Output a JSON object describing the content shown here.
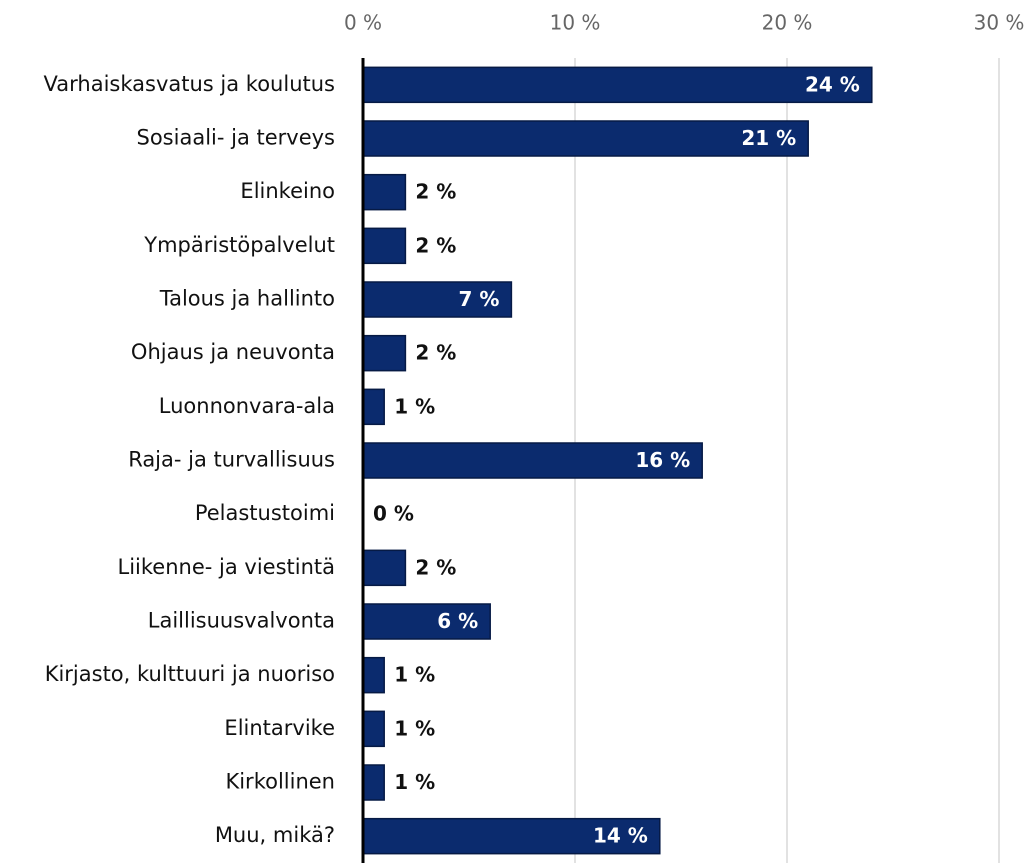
{
  "chart_data": {
    "type": "bar",
    "orientation": "horizontal",
    "categories": [
      "Varhaiskasvatus ja koulutus",
      "Sosiaali- ja terveys",
      "Elinkeino",
      "Ympäristöpalvelut",
      "Talous ja hallinto",
      "Ohjaus ja neuvonta",
      "Luonnonvara-ala",
      "Raja- ja turvallisuus",
      "Pelastustoimi",
      "Liikenne- ja viestintä",
      "Laillisuusvalvonta",
      "Kirjasto, kulttuuri ja nuoriso",
      "Elintarvike",
      "Kirkollinen",
      "Muu, mikä?"
    ],
    "values": [
      24,
      21,
      2,
      2,
      7,
      2,
      1,
      16,
      0,
      2,
      6,
      1,
      1,
      1,
      14
    ],
    "value_labels": [
      "24 %",
      "21 %",
      "2 %",
      "2 %",
      "7 %",
      "2 %",
      "1 %",
      "16 %",
      "0 %",
      "2 %",
      "6 %",
      "1 %",
      "1 %",
      "1 %",
      "14 %"
    ],
    "color": "#0b2b6e",
    "xlim": [
      0,
      30
    ],
    "xticks": [
      {
        "value": 0,
        "label": "0 %"
      },
      {
        "value": 10,
        "label": "10 %"
      },
      {
        "value": 20,
        "label": "20 %"
      },
      {
        "value": 30,
        "label": "30 %"
      }
    ],
    "grid": true
  }
}
